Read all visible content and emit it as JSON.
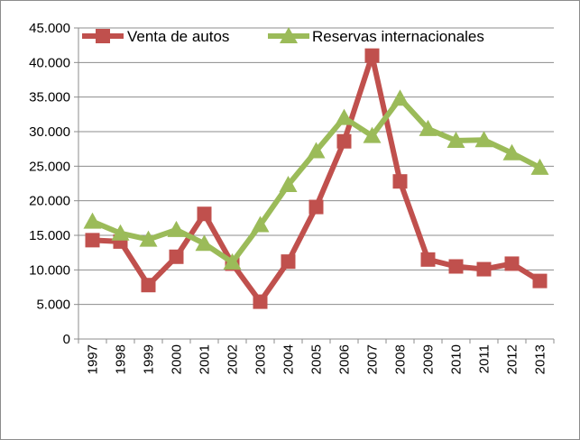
{
  "chart_data": {
    "type": "line",
    "x": [
      "1997",
      "1998",
      "1999",
      "2000",
      "2001",
      "2002",
      "2003",
      "2004",
      "2005",
      "2006",
      "2007",
      "2008",
      "2009",
      "2010",
      "2011",
      "2012",
      "2013"
    ],
    "series": [
      {
        "name": "Venta de autos",
        "color": "#c0504d",
        "marker": "square",
        "values": [
          14300,
          14100,
          7800,
          11900,
          18100,
          10900,
          5400,
          11200,
          19100,
          28600,
          41000,
          22800,
          11500,
          10500,
          10100,
          10900,
          8400
        ]
      },
      {
        "name": "Reservas internacionales",
        "color": "#9bbb59",
        "marker": "triangle",
        "values": [
          17000,
          15300,
          14400,
          15800,
          13800,
          11100,
          16500,
          22300,
          27200,
          32000,
          29400,
          34800,
          30400,
          28700,
          28800,
          26900,
          24800
        ]
      }
    ],
    "ylim": [
      0,
      45000
    ],
    "yticks": [
      "0",
      "5.000",
      "10.000",
      "15.000",
      "20.000",
      "25.000",
      "30.000",
      "35.000",
      "40.000",
      "45.000"
    ],
    "grid": true,
    "legend": "top"
  }
}
